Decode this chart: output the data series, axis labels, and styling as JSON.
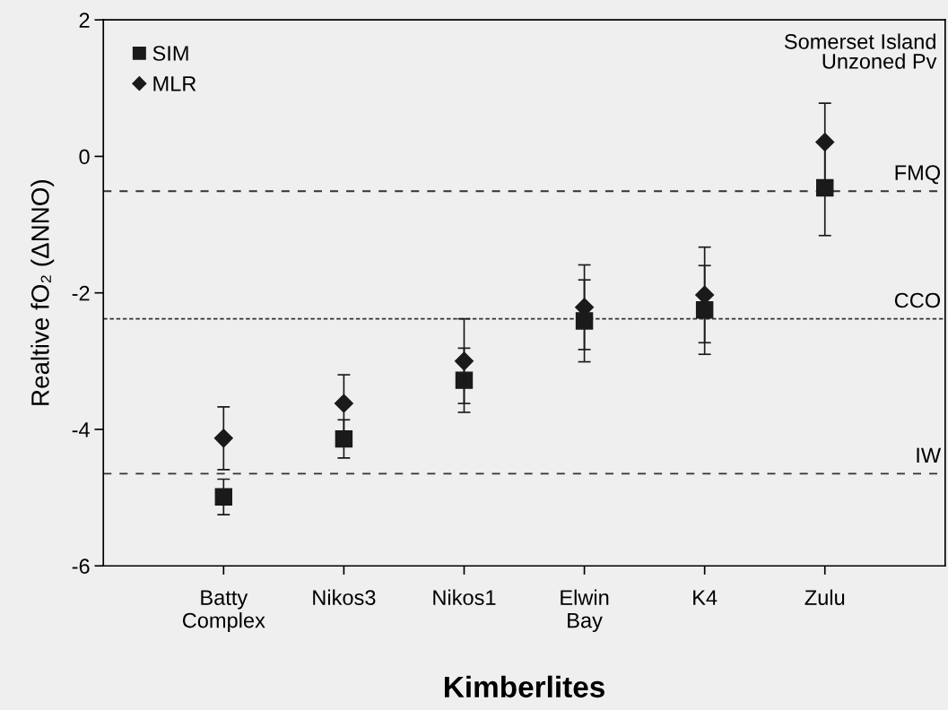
{
  "chart_data": {
    "type": "scatter",
    "xlabel": "Kimberlites",
    "ylabel": "Realtive fO₂ (ΔNNO)",
    "categories": [
      "Batty\nComplex",
      "Nikos3",
      "Nikos1",
      "Elwin\nBay",
      "K4",
      "Zulu"
    ],
    "series": [
      {
        "name": "SIM",
        "color": "#1a1a1a",
        "marker": "square",
        "values": [
          -4.99,
          -4.14,
          -3.28,
          -2.41,
          -2.25,
          -0.46
        ],
        "errors": [
          0.26,
          0.28,
          0.47,
          0.6,
          0.65,
          0.7
        ]
      },
      {
        "name": "MLR",
        "color": "#1a1a1a",
        "marker": "diamond",
        "values": [
          -4.13,
          -3.62,
          -3.0,
          -2.21,
          -2.03,
          0.21
        ],
        "errors": [
          0.46,
          0.42,
          0.62,
          0.62,
          0.7,
          0.57
        ]
      }
    ],
    "ylim": [
      -6,
      2
    ],
    "yticks": [
      -6,
      -4,
      -2,
      0,
      2
    ],
    "ref_lines": [
      {
        "axis": "y",
        "value": -0.51,
        "label": "FMQ",
        "line_style": "dashed",
        "color": "#333333"
      },
      {
        "axis": "y",
        "value": -2.38,
        "label": "CCO",
        "line_style": "dotted",
        "color": "#333333"
      },
      {
        "axis": "y",
        "value": -4.65,
        "label": "IW",
        "line_style": "dashed",
        "color": "#333333"
      }
    ],
    "annotations": [
      "Somerset Island\nUnzoned Pv"
    ],
    "legend": "top left",
    "grid": false
  }
}
